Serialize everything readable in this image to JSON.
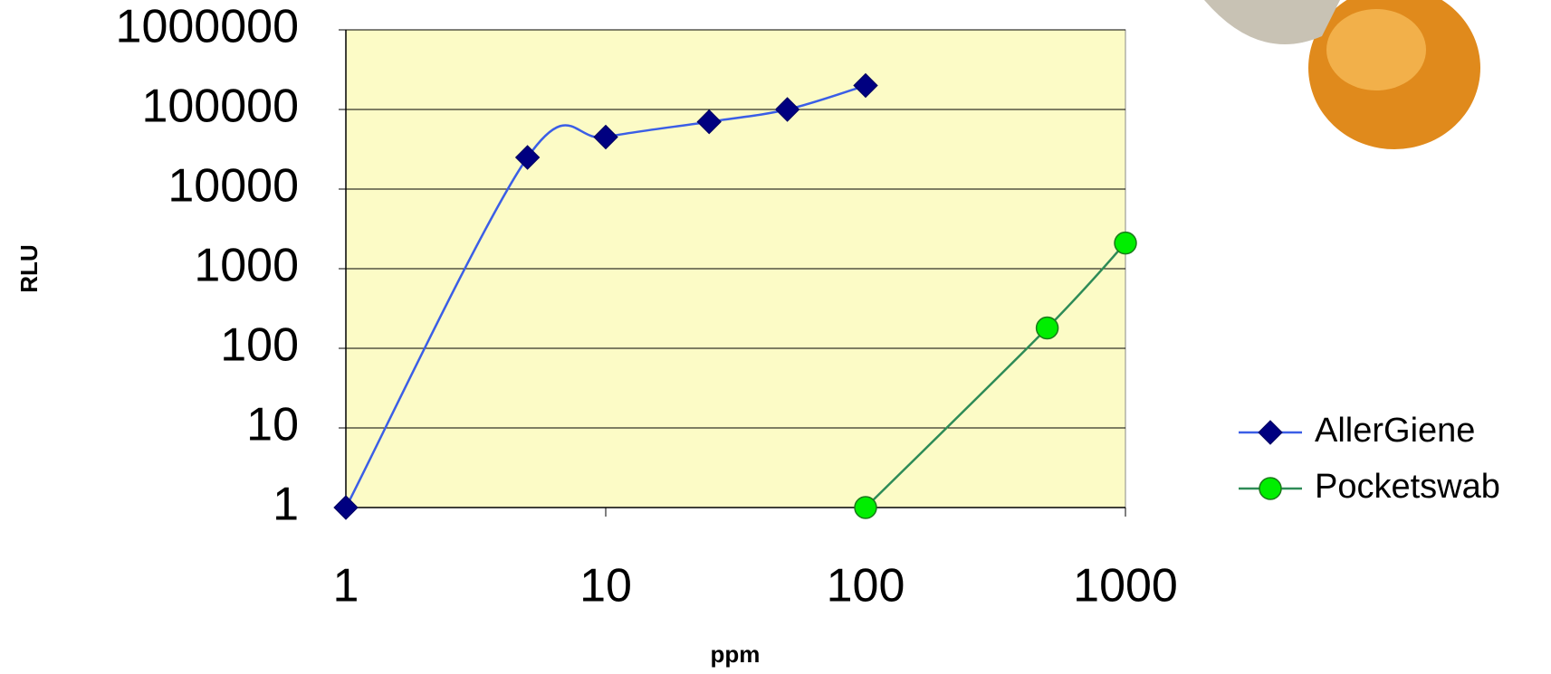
{
  "chart_data": {
    "type": "line",
    "xlabel": "ppm",
    "ylabel": "RLU",
    "xscale": "log",
    "yscale": "log",
    "xlim": [
      1,
      1000
    ],
    "ylim": [
      1,
      1000000
    ],
    "xticks": [
      1,
      10,
      100,
      1000
    ],
    "yticks": [
      1,
      10,
      100,
      1000,
      10000,
      100000,
      1000000
    ],
    "grid": true,
    "legend": "right",
    "plot_background": "#fcfbc6",
    "series": [
      {
        "name": "AllerGiene",
        "color": "#3b5ee6",
        "marker": "diamond",
        "marker_color": "#000080",
        "x": [
          1,
          5,
          10,
          25,
          50,
          100
        ],
        "values": [
          1,
          25000,
          45000,
          70000,
          100000,
          200000
        ]
      },
      {
        "name": "Pocketswab",
        "color": "#2e8b57",
        "marker": "circle",
        "marker_color": "#00ee00",
        "x": [
          100,
          500,
          1000
        ],
        "values": [
          1,
          180,
          2100
        ]
      }
    ]
  }
}
